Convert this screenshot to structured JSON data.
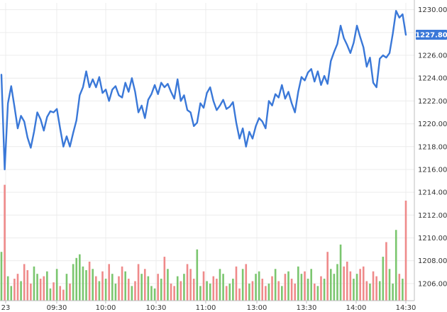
{
  "chart_data": {
    "type": "line",
    "title": "",
    "xlabel": "",
    "ylabel": "",
    "grid": true,
    "legend": "none",
    "colors": {
      "price": "#3a78d8",
      "up": "#7bc66f",
      "down": "#ef8a8a",
      "badge": "#3a78d8",
      "badge_text": "#ffffff"
    },
    "x_ticks": [
      "23",
      "09:30",
      "10:00",
      "10:30",
      "11:00",
      "13:00",
      "13:30",
      "14:00",
      "14:30"
    ],
    "y_ticks": [
      "1230.00",
      "1228.00",
      "1226.00",
      "1224.00",
      "1222.00",
      "1220.00",
      "1218.00",
      "1216.00",
      "1214.00",
      "1212.00",
      "1210.00",
      "1208.00",
      "1206.00"
    ],
    "ylim": [
      1204.5,
      1230.6
    ],
    "last_price_label": "1227.80",
    "price_series": [
      1224.3,
      1216.0,
      1221.8,
      1223.3,
      1221.5,
      1219.6,
      1220.7,
      1220.2,
      1218.8,
      1217.9,
      1219.3,
      1221.0,
      1220.4,
      1219.4,
      1220.6,
      1221.1,
      1221.0,
      1221.3,
      1219.6,
      1218.0,
      1218.9,
      1218.0,
      1219.2,
      1220.3,
      1222.5,
      1223.2,
      1224.6,
      1223.2,
      1223.9,
      1223.2,
      1224.1,
      1222.7,
      1223.0,
      1222.0,
      1223.0,
      1223.3,
      1222.5,
      1222.3,
      1223.6,
      1222.8,
      1224.0,
      1222.8,
      1221.0,
      1221.6,
      1220.5,
      1222.1,
      1222.6,
      1223.4,
      1222.6,
      1223.6,
      1223.2,
      1223.5,
      1222.8,
      1222.2,
      1223.9,
      1222.0,
      1222.5,
      1221.2,
      1221.0,
      1219.8,
      1220.1,
      1221.8,
      1221.4,
      1222.7,
      1223.2,
      1222.0,
      1221.2,
      1221.6,
      1222.1,
      1221.3,
      1221.5,
      1221.9,
      1220.1,
      1218.7,
      1219.6,
      1218.0,
      1219.3,
      1218.7,
      1219.8,
      1220.5,
      1220.2,
      1219.6,
      1222.0,
      1221.6,
      1222.6,
      1222.3,
      1223.4,
      1222.2,
      1222.8,
      1221.8,
      1221.0,
      1222.8,
      1224.1,
      1223.8,
      1224.5,
      1224.8,
      1223.7,
      1224.6,
      1223.4,
      1224.2,
      1223.5,
      1225.5,
      1226.3,
      1227.0,
      1228.6,
      1227.5,
      1226.9,
      1226.2,
      1227.1,
      1228.6,
      1227.6,
      1226.7,
      1225.0,
      1225.8,
      1223.6,
      1223.2,
      1225.7,
      1226.0,
      1225.8,
      1226.2,
      1227.9,
      1229.9,
      1229.3,
      1229.6,
      1227.8
    ],
    "volume_note": "volume bars in arbitrary units, drawn in bottom panel",
    "volume_series": [
      40,
      95,
      20,
      12,
      18,
      22,
      16,
      30,
      25,
      14,
      28,
      22,
      18,
      20,
      24,
      10,
      15,
      26,
      12,
      9,
      22,
      14,
      30,
      35,
      38,
      28,
      25,
      32,
      26,
      20,
      16,
      24,
      18,
      30,
      22,
      14,
      20,
      28,
      24,
      18,
      12,
      16,
      30,
      22,
      26,
      20,
      12,
      10,
      22,
      18,
      36,
      26,
      14,
      12,
      20,
      16,
      22,
      30,
      26,
      18,
      42,
      12,
      24,
      16,
      14,
      20,
      18,
      26,
      22,
      12,
      14,
      18,
      28,
      10,
      26,
      30,
      14,
      16,
      22,
      24,
      18,
      12,
      14,
      20,
      26,
      16,
      12,
      22,
      24,
      18,
      14,
      28,
      22,
      24,
      18,
      26,
      14,
      12,
      20,
      18,
      40,
      26,
      22,
      30,
      46,
      28,
      32,
      24,
      18,
      22,
      26,
      28,
      16,
      14,
      24,
      20,
      16,
      36,
      48,
      26,
      14,
      58,
      22,
      18,
      82
    ]
  }
}
